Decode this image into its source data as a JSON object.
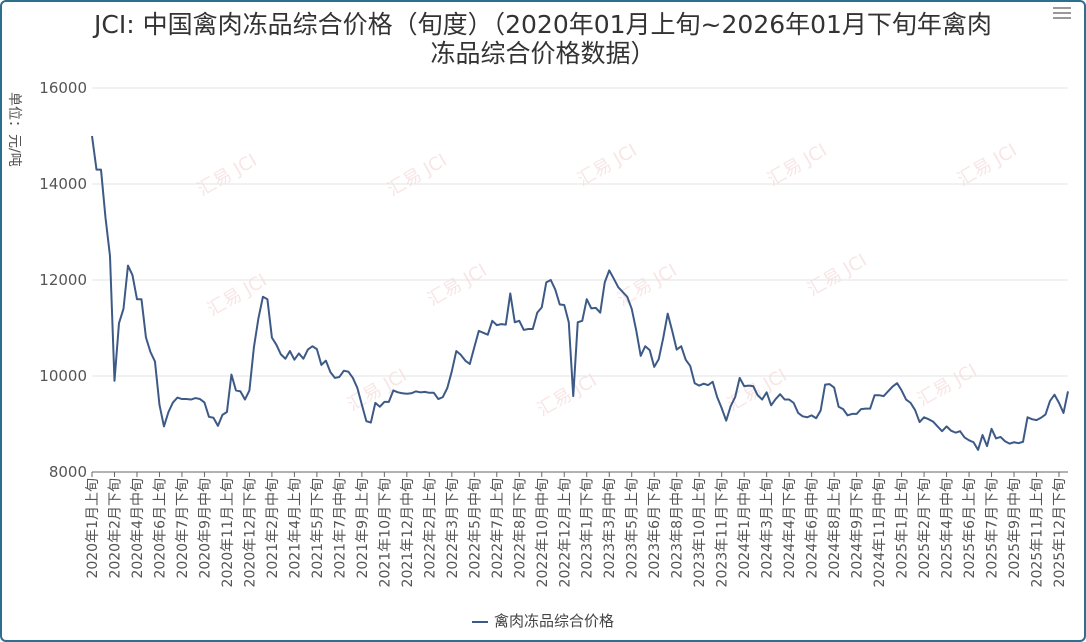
{
  "title_line1": "JCI: 中国禽肉冻品综合价格（旬度）（2020年01月上旬~2026年01月下旬年禽肉",
  "title_line2": "冻品综合价格数据）",
  "watermark": "汇易 JCI",
  "chart_data": {
    "type": "line",
    "title": "JCI: 中国禽肉冻品综合价格（旬度）（2020年01月上旬~2026年01月下旬年禽肉冻品综合价格数据）",
    "ylabel": "单位：元/吨",
    "ylim": [
      8000,
      16000
    ],
    "yticks": [
      8000,
      10000,
      12000,
      14000,
      16000
    ],
    "grid": true,
    "legend_position": "bottom-center",
    "line_color": "#3d5a86",
    "xticks": [
      "2020年1月上旬",
      "2020年2月下旬",
      "2020年4月中旬",
      "2020年6月上旬",
      "2020年7月下旬",
      "2020年9月中旬",
      "2020年11月上旬",
      "2020年12月下旬",
      "2021年2月中旬",
      "2021年4月上旬",
      "2021年5月下旬",
      "2021年7月中旬",
      "2021年9月上旬",
      "2021年10月下旬",
      "2021年12月中旬",
      "2022年2月上旬",
      "2022年3月下旬",
      "2022年5月中旬",
      "2022年7月上旬",
      "2022年8月下旬",
      "2022年10月中旬",
      "2022年12月上旬",
      "2023年1月下旬",
      "2023年3月中旬",
      "2023年5月上旬",
      "2023年6月下旬",
      "2023年8月中旬",
      "2023年10月上旬",
      "2023年11月下旬",
      "2024年1月中旬",
      "2024年3月上旬",
      "2024年4月下旬",
      "2024年6月中旬",
      "2024年8月上旬",
      "2024年9月下旬",
      "2024年11月中旬",
      "2025年1月上旬",
      "2025年2月下旬",
      "2025年4月中旬",
      "2025年6月上旬",
      "2025年7月下旬",
      "2025年9月中旬",
      "2025年11月上旬",
      "2025年12月下旬"
    ],
    "series": [
      {
        "name": "禽肉冻品综合价格",
        "values": [
          15000,
          14300,
          14300,
          13300,
          12500,
          9900,
          11100,
          11400,
          12300,
          12100,
          11600,
          11600,
          10800,
          10500,
          10300,
          9400,
          8950,
          9250,
          9450,
          9550,
          9520,
          9520,
          9510,
          9540,
          9520,
          9450,
          9150,
          9130,
          8960,
          9190,
          9250,
          10030,
          9700,
          9680,
          9510,
          9700,
          10600,
          11200,
          11650,
          11600,
          10800,
          10650,
          10450,
          10360,
          10520,
          10340,
          10470,
          10360,
          10550,
          10620,
          10560,
          10230,
          10320,
          10080,
          9960,
          9980,
          10110,
          10090,
          9960,
          9750,
          9400,
          9060,
          9030,
          9440,
          9360,
          9460,
          9460,
          9700,
          9660,
          9640,
          9630,
          9640,
          9680,
          9660,
          9670,
          9650,
          9650,
          9520,
          9560,
          9750,
          10100,
          10520,
          10440,
          10320,
          10250,
          10600,
          10940,
          10900,
          10860,
          11150,
          11060,
          11080,
          11070,
          11720,
          11120,
          11150,
          10960,
          10980,
          10980,
          11320,
          11430,
          11950,
          12000,
          11800,
          11490,
          11480,
          11120,
          9580,
          11120,
          11150,
          11600,
          11410,
          11420,
          11320,
          11950,
          12200,
          12030,
          11850,
          11750,
          11650,
          11400,
          10950,
          10420,
          10620,
          10540,
          10190,
          10350,
          10790,
          11300,
          10940,
          10550,
          10620,
          10340,
          10210,
          9850,
          9800,
          9840,
          9810,
          9880,
          9560,
          9330,
          9070,
          9370,
          9560,
          9960,
          9790,
          9800,
          9790,
          9600,
          9510,
          9660,
          9390,
          9520,
          9620,
          9510,
          9510,
          9440,
          9230,
          9160,
          9140,
          9180,
          9120,
          9280,
          9820,
          9830,
          9760,
          9360,
          9310,
          9180,
          9210,
          9210,
          9310,
          9320,
          9320,
          9600,
          9600,
          9580,
          9680,
          9780,
          9850,
          9700,
          9510,
          9440,
          9290,
          9040,
          9140,
          9100,
          9050,
          8950,
          8850,
          8950,
          8860,
          8820,
          8850,
          8720,
          8660,
          8620,
          8460,
          8770,
          8540,
          8900,
          8700,
          8730,
          8640,
          8590,
          8620,
          8600,
          8630,
          9140,
          9100,
          9080,
          9130,
          9200,
          9480,
          9610,
          9440,
          9230,
          9680
        ]
      }
    ]
  }
}
